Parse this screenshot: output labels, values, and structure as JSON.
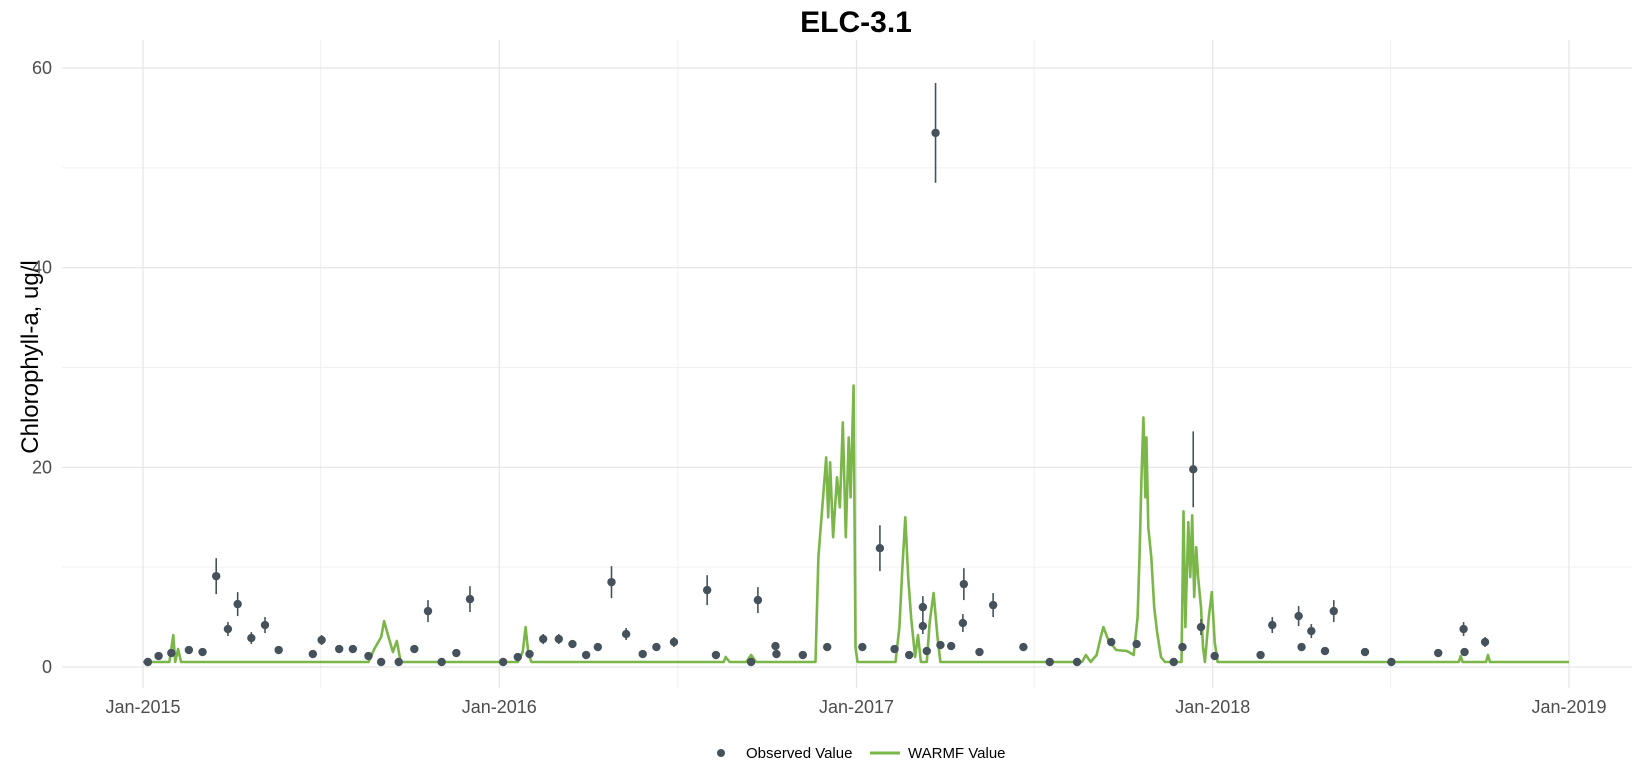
{
  "chart_data": {
    "type": "line",
    "title": "ELC-3.1",
    "xlabel": "",
    "ylabel": "Chlorophyll-a, ug/l",
    "ylim": [
      0,
      60
    ],
    "xlim": [
      "2015-01-01",
      "2019-01-01"
    ],
    "x_ticks": [
      "Jan-2015",
      "Jan-2016",
      "Jan-2017",
      "Jan-2018",
      "Jan-2019"
    ],
    "y_ticks": [
      0,
      20,
      40,
      60
    ],
    "grid": true,
    "legend_position": "bottom",
    "colors": {
      "observed": "#45525c",
      "warmf": "#7ab648",
      "grid": "#e5e5e5"
    },
    "series": [
      {
        "name": "Observed Value",
        "kind": "points_with_error_bars",
        "points": [
          {
            "x": "2015-01-06",
            "y": 0.5
          },
          {
            "x": "2015-01-17",
            "y": 1.1
          },
          {
            "x": "2015-01-30",
            "y": 1.4
          },
          {
            "x": "2015-02-17",
            "y": 1.7
          },
          {
            "x": "2015-03-03",
            "y": 1.5
          },
          {
            "x": "2015-03-17",
            "y": 9.1,
            "err": 1.8
          },
          {
            "x": "2015-03-29",
            "y": 3.8,
            "err": 0.7
          },
          {
            "x": "2015-04-08",
            "y": 6.3,
            "err": 1.2
          },
          {
            "x": "2015-04-22",
            "y": 2.9,
            "err": 0.6
          },
          {
            "x": "2015-05-06",
            "y": 4.2,
            "err": 0.8
          },
          {
            "x": "2015-05-20",
            "y": 1.7
          },
          {
            "x": "2015-06-24",
            "y": 1.3
          },
          {
            "x": "2015-07-03",
            "y": 2.7,
            "err": 0.5
          },
          {
            "x": "2015-07-21",
            "y": 1.8
          },
          {
            "x": "2015-08-04",
            "y": 1.8
          },
          {
            "x": "2015-08-20",
            "y": 1.1
          },
          {
            "x": "2015-09-02",
            "y": 0.5
          },
          {
            "x": "2015-09-20",
            "y": 0.5
          },
          {
            "x": "2015-10-06",
            "y": 1.8
          },
          {
            "x": "2015-10-20",
            "y": 5.6,
            "err": 1.1
          },
          {
            "x": "2015-11-03",
            "y": 0.5
          },
          {
            "x": "2015-11-18",
            "y": 1.4
          },
          {
            "x": "2015-12-02",
            "y": 6.8,
            "err": 1.3
          },
          {
            "x": "2016-01-05",
            "y": 0.5
          },
          {
            "x": "2016-01-20",
            "y": 1.0
          },
          {
            "x": "2016-02-01",
            "y": 1.3
          },
          {
            "x": "2016-02-15",
            "y": 2.8,
            "err": 0.5
          },
          {
            "x": "2016-03-02",
            "y": 2.8,
            "err": 0.5
          },
          {
            "x": "2016-03-16",
            "y": 2.3
          },
          {
            "x": "2016-03-30",
            "y": 1.2
          },
          {
            "x": "2016-04-11",
            "y": 2.0
          },
          {
            "x": "2016-04-25",
            "y": 8.5,
            "err": 1.6
          },
          {
            "x": "2016-05-10",
            "y": 3.3,
            "err": 0.6
          },
          {
            "x": "2016-05-27",
            "y": 1.3
          },
          {
            "x": "2016-06-10",
            "y": 2.0
          },
          {
            "x": "2016-06-28",
            "y": 2.5,
            "err": 0.5
          },
          {
            "x": "2016-08-01",
            "y": 7.7,
            "err": 1.5
          },
          {
            "x": "2016-08-10",
            "y": 1.2
          },
          {
            "x": "2016-09-15",
            "y": 0.5
          },
          {
            "x": "2016-09-22",
            "y": 6.7,
            "err": 1.3
          },
          {
            "x": "2016-10-10",
            "y": 2.1
          },
          {
            "x": "2016-10-11",
            "y": 1.3
          },
          {
            "x": "2016-11-07",
            "y": 1.2
          },
          {
            "x": "2016-12-02",
            "y": 2.0
          },
          {
            "x": "2017-01-07",
            "y": 2.0
          },
          {
            "x": "2017-01-25",
            "y": 11.9,
            "err": 2.3
          },
          {
            "x": "2017-02-09",
            "y": 1.8
          },
          {
            "x": "2017-02-24",
            "y": 1.2
          },
          {
            "x": "2017-03-10",
            "y": 6.0,
            "err": 1.1
          },
          {
            "x": "2017-03-10",
            "y": 4.1,
            "err": 0.8
          },
          {
            "x": "2017-03-14",
            "y": 1.6
          },
          {
            "x": "2017-03-23",
            "y": 53.5,
            "err": 5.0
          },
          {
            "x": "2017-03-28",
            "y": 2.2
          },
          {
            "x": "2017-04-08",
            "y": 2.1
          },
          {
            "x": "2017-04-20",
            "y": 4.4,
            "err": 0.9
          },
          {
            "x": "2017-04-21",
            "y": 8.3,
            "err": 1.6
          },
          {
            "x": "2017-05-07",
            "y": 1.5
          },
          {
            "x": "2017-05-21",
            "y": 6.2,
            "err": 1.2
          },
          {
            "x": "2017-06-21",
            "y": 2.0
          },
          {
            "x": "2017-07-18",
            "y": 0.5
          },
          {
            "x": "2017-08-15",
            "y": 0.5
          },
          {
            "x": "2017-09-19",
            "y": 2.5
          },
          {
            "x": "2017-10-15",
            "y": 2.3
          },
          {
            "x": "2017-11-22",
            "y": 0.5
          },
          {
            "x": "2017-12-01",
            "y": 2.0
          },
          {
            "x": "2017-12-12",
            "y": 19.8,
            "err": 3.8
          },
          {
            "x": "2017-12-20",
            "y": 4.0,
            "err": 0.8
          },
          {
            "x": "2018-01-03",
            "y": 1.1
          },
          {
            "x": "2018-02-19",
            "y": 1.2
          },
          {
            "x": "2018-03-03",
            "y": 4.2,
            "err": 0.8
          },
          {
            "x": "2018-03-30",
            "y": 5.1,
            "err": 1.0
          },
          {
            "x": "2018-04-02",
            "y": 2.0
          },
          {
            "x": "2018-04-12",
            "y": 3.6,
            "err": 0.7
          },
          {
            "x": "2018-04-26",
            "y": 1.6
          },
          {
            "x": "2018-05-05",
            "y": 5.6,
            "err": 1.1
          },
          {
            "x": "2018-06-06",
            "y": 1.5
          },
          {
            "x": "2018-07-03",
            "y": 0.5
          },
          {
            "x": "2018-08-20",
            "y": 1.4
          },
          {
            "x": "2018-09-15",
            "y": 3.8,
            "err": 0.7
          },
          {
            "x": "2018-09-16",
            "y": 1.5
          },
          {
            "x": "2018-10-07",
            "y": 2.5,
            "err": 0.5
          }
        ]
      },
      {
        "name": "WARMF Value",
        "kind": "line",
        "points": [
          {
            "x": "2015-01-01",
            "y": 0.5
          },
          {
            "x": "2015-01-28",
            "y": 0.5
          },
          {
            "x": "2015-02-01",
            "y": 3.2
          },
          {
            "x": "2015-02-03",
            "y": 0.5
          },
          {
            "x": "2015-02-06",
            "y": 1.8
          },
          {
            "x": "2015-02-09",
            "y": 0.5
          },
          {
            "x": "2015-08-20",
            "y": 0.5
          },
          {
            "x": "2015-08-26",
            "y": 1.8
          },
          {
            "x": "2015-09-02",
            "y": 3.0
          },
          {
            "x": "2015-09-05",
            "y": 4.6
          },
          {
            "x": "2015-09-09",
            "y": 3.2
          },
          {
            "x": "2015-09-14",
            "y": 1.5
          },
          {
            "x": "2015-09-18",
            "y": 2.6
          },
          {
            "x": "2015-09-22",
            "y": 0.5
          },
          {
            "x": "2016-01-20",
            "y": 0.5
          },
          {
            "x": "2016-01-25",
            "y": 1.5
          },
          {
            "x": "2016-01-28",
            "y": 4.0
          },
          {
            "x": "2016-01-31",
            "y": 1.2
          },
          {
            "x": "2016-02-03",
            "y": 0.5
          },
          {
            "x": "2016-08-18",
            "y": 0.5
          },
          {
            "x": "2016-08-20",
            "y": 1.0
          },
          {
            "x": "2016-08-24",
            "y": 0.5
          },
          {
            "x": "2016-09-10",
            "y": 0.5
          },
          {
            "x": "2016-09-15",
            "y": 1.2
          },
          {
            "x": "2016-09-20",
            "y": 0.5
          },
          {
            "x": "2016-11-20",
            "y": 0.5
          },
          {
            "x": "2016-11-23",
            "y": 11.0
          },
          {
            "x": "2016-11-27",
            "y": 16.0
          },
          {
            "x": "2016-12-01",
            "y": 21.0
          },
          {
            "x": "2016-12-03",
            "y": 15.0
          },
          {
            "x": "2016-12-05",
            "y": 20.5
          },
          {
            "x": "2016-12-08",
            "y": 13.0
          },
          {
            "x": "2016-12-12",
            "y": 19.0
          },
          {
            "x": "2016-12-15",
            "y": 16.0
          },
          {
            "x": "2016-12-18",
            "y": 24.5
          },
          {
            "x": "2016-12-21",
            "y": 13.0
          },
          {
            "x": "2016-12-24",
            "y": 23.0
          },
          {
            "x": "2016-12-26",
            "y": 17.0
          },
          {
            "x": "2016-12-29",
            "y": 28.2
          },
          {
            "x": "2016-12-31",
            "y": 2.0
          },
          {
            "x": "2017-01-02",
            "y": 0.5
          },
          {
            "x": "2017-02-10",
            "y": 0.5
          },
          {
            "x": "2017-02-14",
            "y": 4.0
          },
          {
            "x": "2017-02-17",
            "y": 10.0
          },
          {
            "x": "2017-02-20",
            "y": 15.0
          },
          {
            "x": "2017-02-23",
            "y": 9.0
          },
          {
            "x": "2017-02-26",
            "y": 5.0
          },
          {
            "x": "2017-03-02",
            "y": 1.0
          },
          {
            "x": "2017-03-05",
            "y": 3.2
          },
          {
            "x": "2017-03-08",
            "y": 0.5
          },
          {
            "x": "2017-03-14",
            "y": 0.5
          },
          {
            "x": "2017-03-17",
            "y": 4.5
          },
          {
            "x": "2017-03-21",
            "y": 7.4
          },
          {
            "x": "2017-03-25",
            "y": 3.0
          },
          {
            "x": "2017-03-28",
            "y": 0.5
          },
          {
            "x": "2017-08-20",
            "y": 0.5
          },
          {
            "x": "2017-08-24",
            "y": 1.2
          },
          {
            "x": "2017-08-29",
            "y": 0.5
          },
          {
            "x": "2017-09-04",
            "y": 1.2
          },
          {
            "x": "2017-09-09",
            "y": 3.3
          },
          {
            "x": "2017-09-11",
            "y": 4.0
          },
          {
            "x": "2017-09-16",
            "y": 2.7
          },
          {
            "x": "2017-09-24",
            "y": 1.7
          },
          {
            "x": "2017-10-05",
            "y": 1.6
          },
          {
            "x": "2017-10-12",
            "y": 1.2
          },
          {
            "x": "2017-10-16",
            "y": 5.0
          },
          {
            "x": "2017-10-18",
            "y": 11.0
          },
          {
            "x": "2017-10-20",
            "y": 19.0
          },
          {
            "x": "2017-10-22",
            "y": 25.0
          },
          {
            "x": "2017-10-24",
            "y": 17.0
          },
          {
            "x": "2017-10-25",
            "y": 23.0
          },
          {
            "x": "2017-10-27",
            "y": 14.0
          },
          {
            "x": "2017-10-30",
            "y": 11.0
          },
          {
            "x": "2017-11-02",
            "y": 6.0
          },
          {
            "x": "2017-11-05",
            "y": 3.5
          },
          {
            "x": "2017-11-09",
            "y": 1.0
          },
          {
            "x": "2017-11-13",
            "y": 0.5
          },
          {
            "x": "2017-11-30",
            "y": 0.5
          },
          {
            "x": "2017-12-02",
            "y": 15.6
          },
          {
            "x": "2017-12-04",
            "y": 4.0
          },
          {
            "x": "2017-12-07",
            "y": 14.5
          },
          {
            "x": "2017-12-09",
            "y": 9.0
          },
          {
            "x": "2017-12-11",
            "y": 15.2
          },
          {
            "x": "2017-12-13",
            "y": 7.0
          },
          {
            "x": "2017-12-15",
            "y": 12.0
          },
          {
            "x": "2017-12-17",
            "y": 9.0
          },
          {
            "x": "2017-12-20",
            "y": 6.0
          },
          {
            "x": "2017-12-22",
            "y": 2.0
          },
          {
            "x": "2017-12-24",
            "y": 0.5
          },
          {
            "x": "2017-12-28",
            "y": 5.0
          },
          {
            "x": "2017-12-31",
            "y": 7.5
          },
          {
            "x": "2018-01-03",
            "y": 2.5
          },
          {
            "x": "2018-01-06",
            "y": 0.5
          },
          {
            "x": "2018-09-10",
            "y": 0.5
          },
          {
            "x": "2018-09-12",
            "y": 1.1
          },
          {
            "x": "2018-09-14",
            "y": 0.5
          },
          {
            "x": "2018-10-08",
            "y": 0.5
          },
          {
            "x": "2018-10-10",
            "y": 1.2
          },
          {
            "x": "2018-10-12",
            "y": 0.5
          },
          {
            "x": "2019-01-01",
            "y": 0.5
          }
        ]
      }
    ]
  }
}
